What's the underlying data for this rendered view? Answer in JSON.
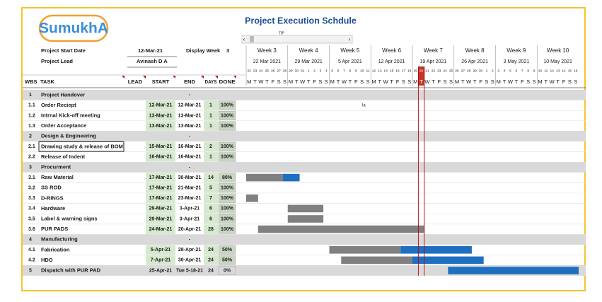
{
  "logo": "SumukhA",
  "title": "Project Execution Schdule",
  "tip": "TIP",
  "note": "la",
  "info": {
    "start_label": "Project Start Date",
    "start_value": "12-Mar-21",
    "display_week_label": "Display Week",
    "display_week_value": 3,
    "lead_label": "Project Lead",
    "lead_value": "Avinash D A"
  },
  "headers": {
    "wbs": "WBS",
    "task": "TASK",
    "lead": "LEAD",
    "start": "START",
    "end": "END",
    "days": "DAYS",
    "done": "DONE"
  },
  "weeks": [
    {
      "label": "Week 3",
      "date": "22 Mar 2021"
    },
    {
      "label": "Week 4",
      "date": "29 Mar 2021"
    },
    {
      "label": "Week 5",
      "date": "5 Apr 2021"
    },
    {
      "label": "Week 6",
      "date": "12 Apr 2021"
    },
    {
      "label": "Week 7",
      "date": "19 Apr 2021"
    },
    {
      "label": "Week 8",
      "date": "26 Apr 2021"
    },
    {
      "label": "Week 9",
      "date": "3 May 2021"
    },
    {
      "label": "Week 10",
      "date": "10 May 2021"
    }
  ],
  "day_numbers": [
    22,
    23,
    24,
    25,
    26,
    27,
    28,
    29,
    30,
    31,
    1,
    2,
    3,
    4,
    5,
    6,
    7,
    8,
    9,
    10,
    11,
    12,
    13,
    14,
    15,
    16,
    17,
    18,
    19,
    20,
    21,
    22,
    23,
    24,
    25,
    26,
    27,
    28,
    29,
    30,
    1,
    2,
    3,
    4,
    5,
    6,
    7,
    8,
    9,
    10,
    11,
    12,
    13,
    14,
    15,
    16
  ],
  "weekday_letters": [
    "M",
    "T",
    "W",
    "T",
    "F",
    "S",
    "S"
  ],
  "highlight_day_index": 29,
  "rows": [
    {
      "wbs": "1",
      "task": "Project Handover",
      "end": "-",
      "section": true
    },
    {
      "wbs": "1.1",
      "task": "Order Reciept",
      "start": "12-Mar-21",
      "end": "12-Mar-21",
      "days": 1,
      "done": "100%"
    },
    {
      "wbs": "1.2",
      "task": "Intrnal Kick-off meeting",
      "start": "13-Mar-21",
      "end": "13-Mar-21",
      "days": 1,
      "done": "100%"
    },
    {
      "wbs": "1.3",
      "task": "Order Acceptance",
      "start": "13-Mar-21",
      "end": "13-Mar-21",
      "days": 1,
      "done": "100%"
    },
    {
      "wbs": "2",
      "task": "Design & Engineering",
      "end": "-",
      "section": true
    },
    {
      "wbs": "2.1",
      "task": "Drawing study  & release of BOM",
      "start": "15-Mar-21",
      "end": "16-Mar-21",
      "days": 2,
      "done": "100%"
    },
    {
      "wbs": "2.2",
      "task": "Release of Indent",
      "start": "16-Mar-21",
      "end": "16-Mar-21",
      "days": 1,
      "done": "100%"
    },
    {
      "wbs": "3",
      "task": "Procurment",
      "end": "-",
      "section": true
    },
    {
      "wbs": "3.1",
      "task": "Raw Material",
      "start": "17-Mar-21",
      "end": "30-Mar-21",
      "days": 14,
      "done": "80%"
    },
    {
      "wbs": "3.2",
      "task": "SS ROD",
      "start": "17-Mar-21",
      "end": "21-Mar-21",
      "days": 5,
      "done": "100%"
    },
    {
      "wbs": "3.3",
      "task": "D-RINGS",
      "start": "17-Mar-21",
      "end": "23-Mar-21",
      "days": 7,
      "done": "100%"
    },
    {
      "wbs": "3.4",
      "task": "Hardware",
      "start": "29-Mar-21",
      "end": "3-Apr-21",
      "days": 6,
      "done": "100%"
    },
    {
      "wbs": "3.5",
      "task": "Label & warning signs",
      "start": "29-Mar-21",
      "end": "3-Apr-21",
      "days": 6,
      "done": "100%"
    },
    {
      "wbs": "3.6",
      "task": "PUR PADS",
      "start": "24-Mar-21",
      "end": "20-Apr-21",
      "days": 28,
      "done": "100%"
    },
    {
      "wbs": "4",
      "task": "Manufacturing",
      "end": "-",
      "section": true
    },
    {
      "wbs": "4.1",
      "task": "Fabrication",
      "start": "5-Apr-21",
      "end": "28-Apr-21",
      "days": 24,
      "done": "50%"
    },
    {
      "wbs": "4.2",
      "task": "HDG",
      "start": "7-Apr-21",
      "end": "30-Apr-21",
      "days": 24,
      "done": "50%"
    },
    {
      "wbs": "5",
      "task": "Dispatch with PUR PAD",
      "start": "25-Apr-21",
      "end": "Tue 5-18-21",
      "days": 24,
      "done": "0%",
      "section": true
    }
  ]
}
